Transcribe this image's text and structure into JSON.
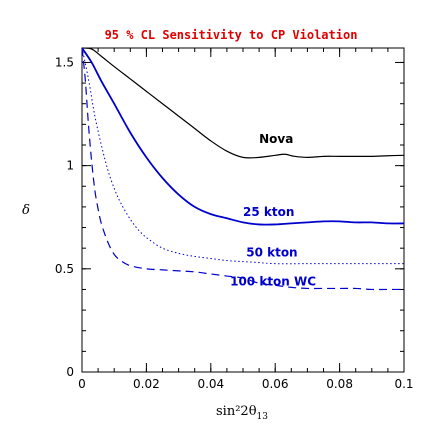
{
  "chart_data": {
    "type": "line",
    "title": "95 % CL Sensitivity to CP Violation",
    "xlabel": "sin²2θ",
    "xlabel_sub": "13",
    "ylabel": "δ",
    "xlim": [
      0,
      0.1
    ],
    "ylim": [
      0,
      1.57
    ],
    "x_ticks": [
      0,
      0.02,
      0.04,
      0.06,
      0.08,
      0.1
    ],
    "x_tick_labels": [
      "0",
      "0.02",
      "0.04",
      "0.06",
      "0.08",
      "0.1"
    ],
    "y_ticks": [
      0,
      0.5,
      1,
      1.5
    ],
    "y_tick_labels": [
      "0",
      "0.5",
      "1",
      "1.5"
    ],
    "grid": false,
    "colors": {
      "title": "#e00000",
      "nova": "#000000",
      "blue": "#0000cc",
      "axes": "#000000"
    },
    "series": [
      {
        "name": "Nova",
        "style": "solid",
        "color": "#000000",
        "width": 1.2,
        "label_at": [
          0.055,
          1.11
        ],
        "x": [
          0,
          0.003,
          0.006,
          0.01,
          0.015,
          0.02,
          0.025,
          0.03,
          0.035,
          0.04,
          0.045,
          0.05,
          0.055,
          0.06,
          0.063,
          0.066,
          0.07,
          0.075,
          0.08,
          0.085,
          0.09,
          0.095,
          0.1
        ],
        "y": [
          1.57,
          1.565,
          1.53,
          1.48,
          1.42,
          1.36,
          1.3,
          1.24,
          1.18,
          1.12,
          1.07,
          1.04,
          1.04,
          1.05,
          1.055,
          1.045,
          1.04,
          1.045,
          1.045,
          1.045,
          1.045,
          1.048,
          1.05
        ]
      },
      {
        "name": "25 kton",
        "style": "solid",
        "color": "#0000cc",
        "width": 1.8,
        "label_at": [
          0.05,
          0.755
        ],
        "x": [
          0,
          0.003,
          0.006,
          0.01,
          0.015,
          0.02,
          0.025,
          0.03,
          0.035,
          0.04,
          0.045,
          0.05,
          0.055,
          0.06,
          0.065,
          0.07,
          0.075,
          0.08,
          0.085,
          0.09,
          0.095,
          0.1
        ],
        "y": [
          1.57,
          1.5,
          1.41,
          1.3,
          1.16,
          1.04,
          0.94,
          0.86,
          0.8,
          0.765,
          0.745,
          0.725,
          0.715,
          0.715,
          0.72,
          0.725,
          0.73,
          0.73,
          0.725,
          0.725,
          0.72,
          0.72
        ]
      },
      {
        "name": "50 kton",
        "style": "dotted",
        "color": "#0000cc",
        "width": 1.0,
        "label_at": [
          0.051,
          0.56
        ],
        "x": [
          0,
          0.002,
          0.004,
          0.006,
          0.008,
          0.01,
          0.012,
          0.015,
          0.018,
          0.021,
          0.025,
          0.03,
          0.035,
          0.04,
          0.045,
          0.05,
          0.055,
          0.06,
          0.07,
          0.08,
          0.09,
          0.1
        ],
        "y": [
          1.57,
          1.42,
          1.24,
          1.1,
          0.98,
          0.89,
          0.82,
          0.74,
          0.68,
          0.64,
          0.6,
          0.575,
          0.56,
          0.55,
          0.54,
          0.535,
          0.53,
          0.525,
          0.525,
          0.525,
          0.525,
          0.525
        ]
      },
      {
        "name": "100 kton WC",
        "style": "dashed",
        "color": "#0000cc",
        "width": 1.2,
        "label_at": [
          0.046,
          0.42
        ],
        "x": [
          0,
          0.001,
          0.002,
          0.003,
          0.004,
          0.005,
          0.006,
          0.008,
          0.01,
          0.012,
          0.015,
          0.02,
          0.025,
          0.03,
          0.035,
          0.04,
          0.045,
          0.05,
          0.055,
          0.06,
          0.065,
          0.07,
          0.075,
          0.08,
          0.085,
          0.09,
          0.095,
          0.1
        ],
        "y": [
          1.57,
          1.42,
          1.2,
          1.02,
          0.88,
          0.79,
          0.72,
          0.63,
          0.57,
          0.54,
          0.515,
          0.5,
          0.495,
          0.49,
          0.485,
          0.475,
          0.465,
          0.455,
          0.43,
          0.42,
          0.41,
          0.405,
          0.405,
          0.405,
          0.405,
          0.4,
          0.4,
          0.4
        ]
      }
    ]
  }
}
